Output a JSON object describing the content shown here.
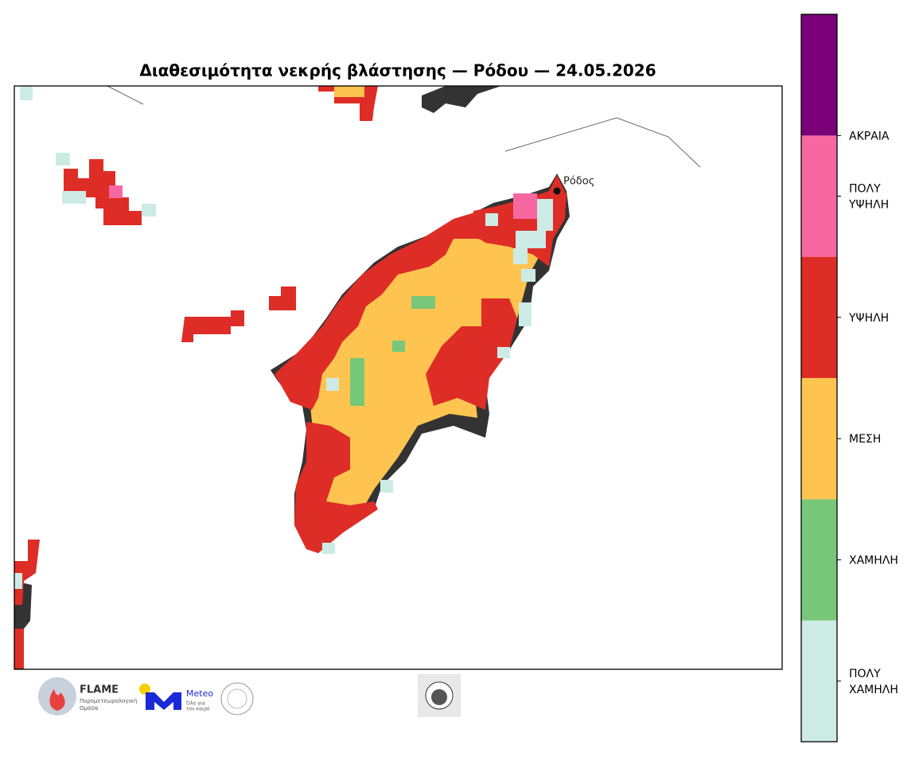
{
  "header": {
    "title": "Διαθεσιμότητα νεκρής βλάστησης — Ρόδου — 24.05.2026"
  },
  "map": {
    "city_label": "Ρόδος"
  },
  "legend": {
    "classes": [
      {
        "label": [
          "ΠΟΛΥ",
          "ΧΑΜΗΛΗ"
        ],
        "color": "#cdebe5"
      },
      {
        "label": [
          "ΧΑΜΗΛΗ"
        ],
        "color": "#78c679"
      },
      {
        "label": [
          "ΜΕΣΗ"
        ],
        "color": "#fec44f"
      },
      {
        "label": [
          "ΥΨΗΛΗ"
        ],
        "color": "#de2d26"
      },
      {
        "label": [
          "ΠΟΛΥ",
          "ΥΨΗΛΗ"
        ],
        "color": "#f768a1"
      },
      {
        "label": [
          "ΑΚΡΑΙΑ"
        ],
        "color": "#7a0177"
      }
    ]
  },
  "logos": {
    "flame": {
      "name": "FLAME",
      "line1": "Πυρομετεωρολογική",
      "line2": "Ομάδα"
    },
    "meteo": {
      "name": "Meteo",
      "line1": "Όλα για",
      "line2": "τον καιρό"
    }
  }
}
